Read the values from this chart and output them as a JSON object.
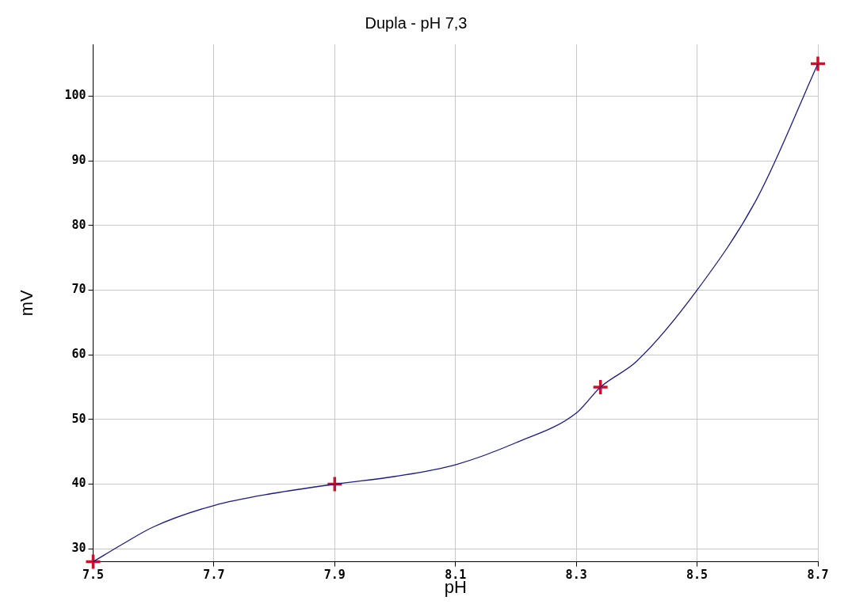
{
  "chart_data": {
    "type": "line",
    "title": "Dupla - pH 7,3",
    "xlabel": "pH",
    "ylabel": "mV",
    "xlim": [
      7.5,
      8.7
    ],
    "xticks": [
      7.5,
      7.7,
      7.9,
      8.1,
      8.3,
      8.5,
      8.7
    ],
    "ylim": [
      28,
      108
    ],
    "yticks": [
      30,
      40,
      50,
      60,
      70,
      80,
      90,
      100
    ],
    "grid": true,
    "legend": false,
    "series": [
      {
        "color": "#1a1a8c",
        "marker": "none",
        "x": [
          7.5,
          7.55,
          7.6,
          7.7,
          7.8,
          7.9,
          8.0,
          8.1,
          8.2,
          8.3,
          8.34,
          8.4,
          8.5,
          8.6,
          8.7
        ],
        "values": [
          28,
          30.8,
          33.4,
          36.7,
          38.6,
          40,
          41.2,
          43,
          46.4,
          51,
          55,
          59,
          70,
          84.3,
          105
        ]
      },
      {
        "type": "scatter",
        "color": "#d0102a",
        "marker": "cross",
        "x": [
          7.5,
          7.9,
          8.34,
          8.7
        ],
        "values": [
          28,
          40,
          55,
          105
        ]
      }
    ]
  }
}
